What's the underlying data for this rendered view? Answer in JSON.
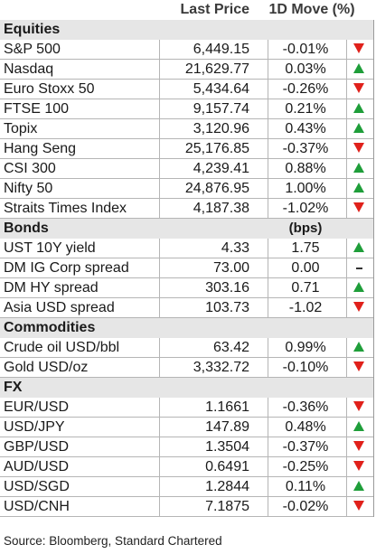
{
  "header": {
    "price_label": "Last Price",
    "move_label": "1D Move (%)"
  },
  "sections": [
    {
      "title": "Equities",
      "unit": "",
      "rows": [
        {
          "name": "S&P 500",
          "price": "6,449.15",
          "move": "-0.01%",
          "dir": "down"
        },
        {
          "name": "Nasdaq",
          "price": "21,629.77",
          "move": "0.03%",
          "dir": "up"
        },
        {
          "name": "Euro Stoxx 50",
          "price": "5,434.64",
          "move": "-0.26%",
          "dir": "down"
        },
        {
          "name": "FTSE 100",
          "price": "9,157.74",
          "move": "0.21%",
          "dir": "up"
        },
        {
          "name": "Topix",
          "price": "3,120.96",
          "move": "0.43%",
          "dir": "up"
        },
        {
          "name": "Hang Seng",
          "price": "25,176.85",
          "move": "-0.37%",
          "dir": "down"
        },
        {
          "name": "CSI 300",
          "price": "4,239.41",
          "move": "0.88%",
          "dir": "up"
        },
        {
          "name": "Nifty 50",
          "price": "24,876.95",
          "move": "1.00%",
          "dir": "up"
        },
        {
          "name": "Straits Times Index",
          "price": "4,187.38",
          "move": "-1.02%",
          "dir": "down"
        }
      ]
    },
    {
      "title": "Bonds",
      "unit": "(bps)",
      "rows": [
        {
          "name": "UST 10Y yield",
          "price": "4.33",
          "move": "1.75",
          "dir": "up"
        },
        {
          "name": "DM IG Corp spread",
          "price": "73.00",
          "move": "0.00",
          "dir": "flat"
        },
        {
          "name": "DM HY spread",
          "price": "303.16",
          "move": "0.71",
          "dir": "up"
        },
        {
          "name": "Asia USD spread",
          "price": "103.73",
          "move": "-1.02",
          "dir": "down"
        }
      ]
    },
    {
      "title": "Commodities",
      "unit": "",
      "rows": [
        {
          "name": "Crude oil USD/bbl",
          "price": "63.42",
          "move": "0.99%",
          "dir": "up"
        },
        {
          "name": "Gold USD/oz",
          "price": "3,332.72",
          "move": "-0.10%",
          "dir": "down"
        }
      ]
    },
    {
      "title": "FX",
      "unit": "",
      "rows": [
        {
          "name": "EUR/USD",
          "price": "1.1661",
          "move": "-0.36%",
          "dir": "down"
        },
        {
          "name": "USD/JPY",
          "price": "147.89",
          "move": "0.48%",
          "dir": "up"
        },
        {
          "name": "GBP/USD",
          "price": "1.3504",
          "move": "-0.37%",
          "dir": "down"
        },
        {
          "name": "AUD/USD",
          "price": "0.6491",
          "move": "-0.25%",
          "dir": "down"
        },
        {
          "name": "USD/SGD",
          "price": "1.2844",
          "move": "0.11%",
          "dir": "up"
        },
        {
          "name": "USD/CNH",
          "price": "7.1875",
          "move": "-0.02%",
          "dir": "down"
        }
      ]
    }
  ],
  "source": "Source: Bloomberg, Standard Chartered",
  "colors": {
    "up": "#1f9e3a",
    "down": "#e0211b",
    "section_bg": "#e6e6e6"
  },
  "icons": {
    "up": "triangle-up-icon",
    "down": "triangle-down-icon",
    "flat": "dash-icon"
  }
}
